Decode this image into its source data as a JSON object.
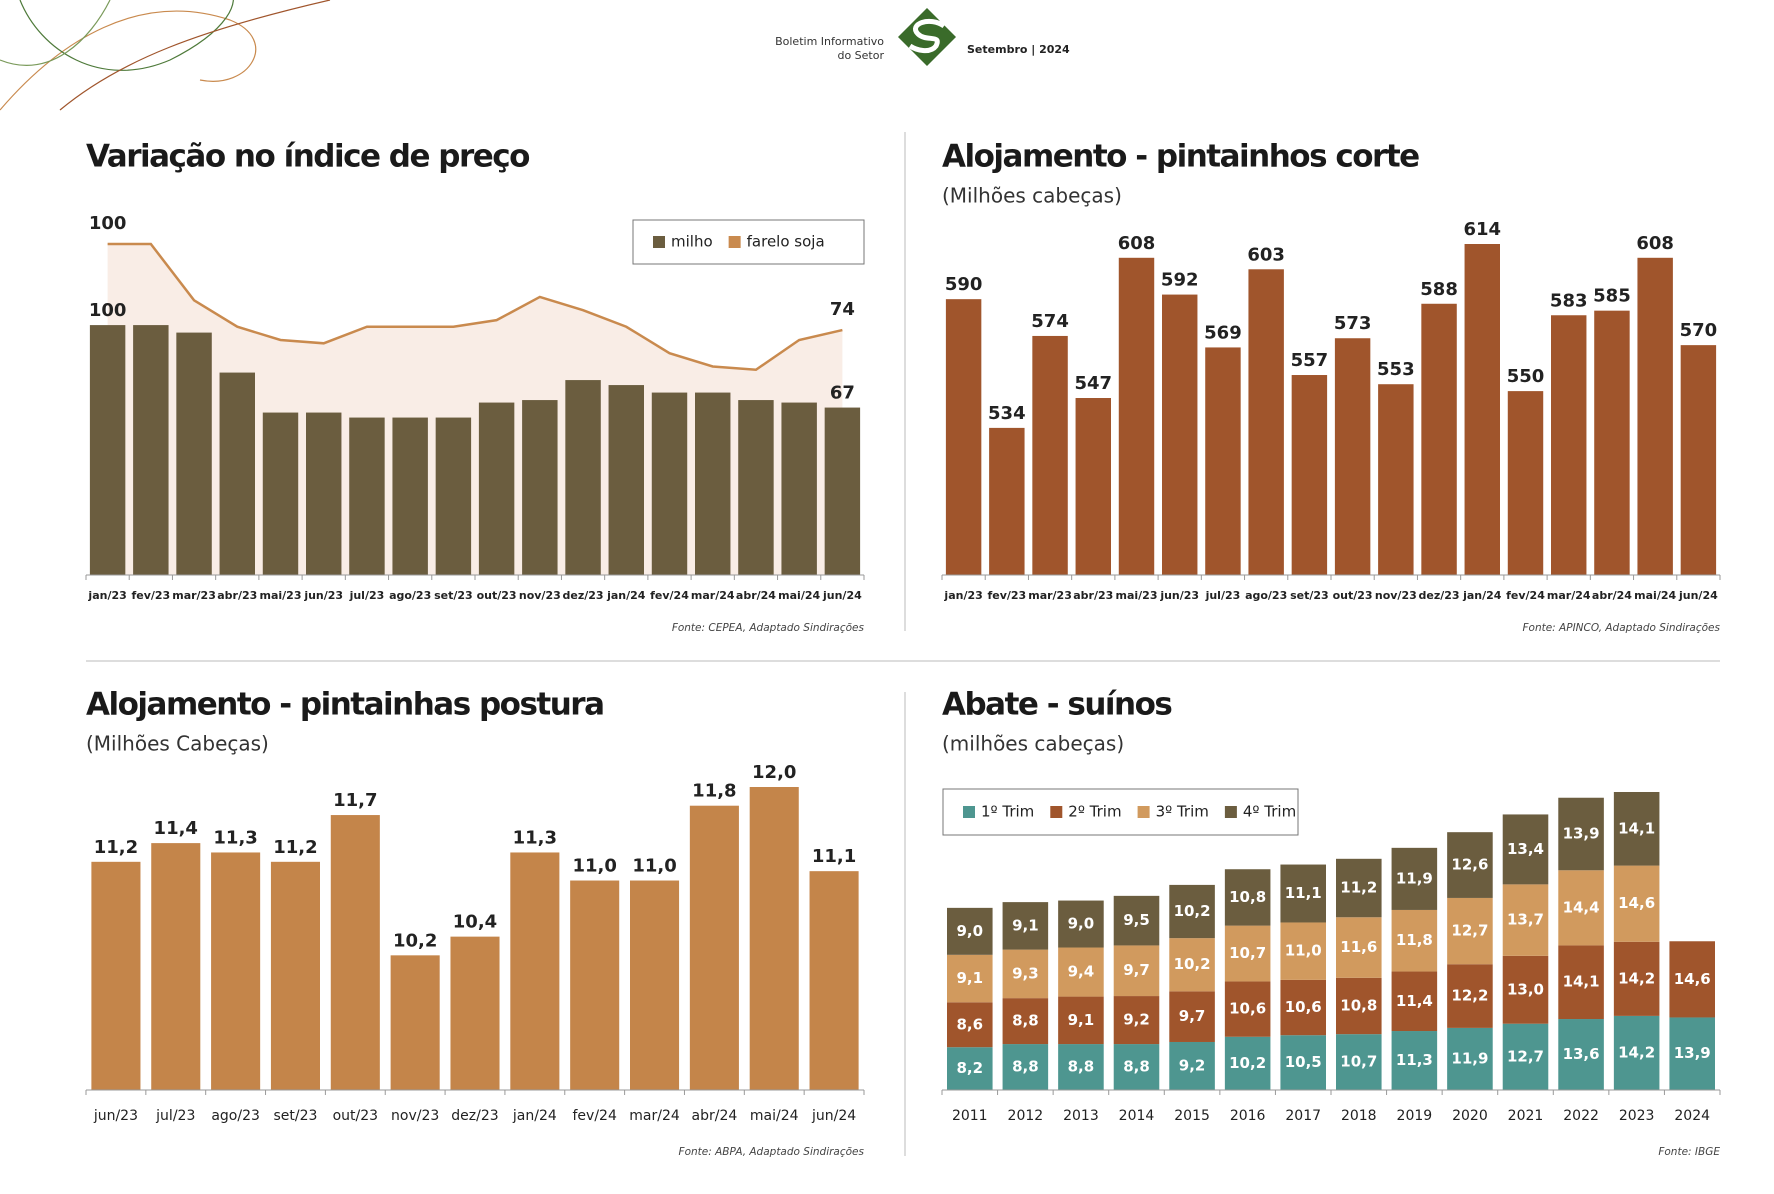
{
  "header": {
    "line1": "Boletim Informativo",
    "line2": "do Setor",
    "edition": "Setembro | 2024"
  },
  "chart_data": [
    {
      "type": "combo",
      "title": "Variação no índice de preço",
      "categories": [
        "jan/23",
        "fev/23",
        "mar/23",
        "abr/23",
        "mai/23",
        "jun/23",
        "jul/23",
        "ago/23",
        "set/23",
        "out/23",
        "nov/23",
        "dez/23",
        "jan/24",
        "fev/24",
        "mar/24",
        "abr/24",
        "mai/24",
        "jun/24"
      ],
      "series": [
        {
          "name": "milho",
          "type": "bar",
          "color": "#6b5d3f",
          "values": [
            100,
            100,
            97,
            81,
            65,
            65,
            63,
            63,
            63,
            69,
            70,
            78,
            76,
            73,
            73,
            70,
            69,
            67
          ]
        },
        {
          "name": "farelo soja",
          "type": "line",
          "color": "#c98a4e",
          "area_color": "#f9ede6",
          "values": [
            100,
            100,
            83,
            75,
            71,
            70,
            75,
            75,
            75,
            77,
            84,
            80,
            75,
            67,
            63,
            62,
            71,
            74
          ]
        }
      ],
      "legend": "top-right",
      "source": "Fonte: CEPEA, Adaptado Sindirações"
    },
    {
      "type": "bar",
      "title": "Alojamento - pintainhos corte",
      "subtitle": "(Milhões cabeças)",
      "categories": [
        "jan/23",
        "fev/23",
        "mar/23",
        "abr/23",
        "mai/23",
        "jun/23",
        "jul/23",
        "ago/23",
        "set/23",
        "out/23",
        "nov/23",
        "dez/23",
        "jan/24",
        "fev/24",
        "mar/24",
        "abr/24",
        "mai/24",
        "jun/24"
      ],
      "values": [
        590,
        534,
        574,
        547,
        608,
        592,
        569,
        603,
        557,
        573,
        553,
        588,
        614,
        550,
        583,
        585,
        608,
        570
      ],
      "color": "#a0552c",
      "source": "Fonte: APINCO, Adaptado Sindirações"
    },
    {
      "type": "bar",
      "title": "Alojamento - pintainhas postura",
      "subtitle": "(Milhões Cabeças)",
      "categories": [
        "jun/23",
        "jul/23",
        "ago/23",
        "set/23",
        "out/23",
        "nov/23",
        "dez/23",
        "jan/24",
        "fev/24",
        "mar/24",
        "abr/24",
        "mai/24",
        "jun/24"
      ],
      "values": [
        11.2,
        11.4,
        11.3,
        11.2,
        11.7,
        10.2,
        10.4,
        11.3,
        11.0,
        11.0,
        11.8,
        12.0,
        11.1
      ],
      "value_labels": [
        "11,2",
        "11,4",
        "11,3",
        "11,2",
        "11,7",
        "10,2",
        "10,4",
        "11,3",
        "11,0",
        "11,0",
        "11,8",
        "12,0",
        "11,1"
      ],
      "color": "#c4854a",
      "source": "Fonte: ABPA, Adaptado Sindirações"
    },
    {
      "type": "stacked-bar",
      "title": "Abate - suínos",
      "subtitle": "(milhões cabeças)",
      "categories": [
        "2011",
        "2012",
        "2013",
        "2014",
        "2015",
        "2016",
        "2017",
        "2018",
        "2019",
        "2020",
        "2021",
        "2022",
        "2023",
        "2024"
      ],
      "series": [
        {
          "name": "1º Trim",
          "color": "#4e9690",
          "values": [
            8.2,
            8.8,
            8.8,
            8.8,
            9.2,
            10.2,
            10.5,
            10.7,
            11.3,
            11.9,
            12.7,
            13.6,
            14.2,
            13.9
          ],
          "value_labels": [
            "8,2",
            "8,8",
            "8,8",
            "8,8",
            "9,2",
            "10,2",
            "10,5",
            "10,7",
            "11,3",
            "11,9",
            "12,7",
            "13,6",
            "14,2",
            "13,9"
          ]
        },
        {
          "name": "2º Trim",
          "color": "#a0552c",
          "values": [
            8.6,
            8.8,
            9.1,
            9.2,
            9.7,
            10.6,
            10.6,
            10.8,
            11.4,
            12.2,
            13.0,
            14.1,
            14.2,
            14.6
          ],
          "value_labels": [
            "8,6",
            "8,8",
            "9,1",
            "9,2",
            "9,7",
            "10,6",
            "10,6",
            "10,8",
            "11,4",
            "12,2",
            "13,0",
            "14,1",
            "14,2",
            "14,6"
          ]
        },
        {
          "name": "3º Trim",
          "color": "#d19a5e",
          "values": [
            9.1,
            9.3,
            9.4,
            9.7,
            10.2,
            10.7,
            11.0,
            11.6,
            11.8,
            12.7,
            13.7,
            14.4,
            14.6,
            null
          ],
          "value_labels": [
            "9,1",
            "9,3",
            "9,4",
            "9,7",
            "10,2",
            "10,7",
            "11,0",
            "11,6",
            "11,8",
            "12,7",
            "13,7",
            "14,4",
            "14,6",
            null
          ]
        },
        {
          "name": "4º Trim",
          "color": "#6b5d3f",
          "values": [
            9.0,
            9.1,
            9.0,
            9.5,
            10.2,
            10.8,
            11.1,
            11.2,
            11.9,
            12.6,
            13.4,
            13.9,
            14.1,
            null
          ],
          "value_labels": [
            "9,0",
            "9,1",
            "9,0",
            "9,5",
            "10,2",
            "10,8",
            "11,1",
            "11,2",
            "11,9",
            "12,6",
            "13,4",
            "13,9",
            "14,1",
            null
          ]
        }
      ],
      "legend": "top-left",
      "source": "Fonte: IBGE"
    }
  ]
}
